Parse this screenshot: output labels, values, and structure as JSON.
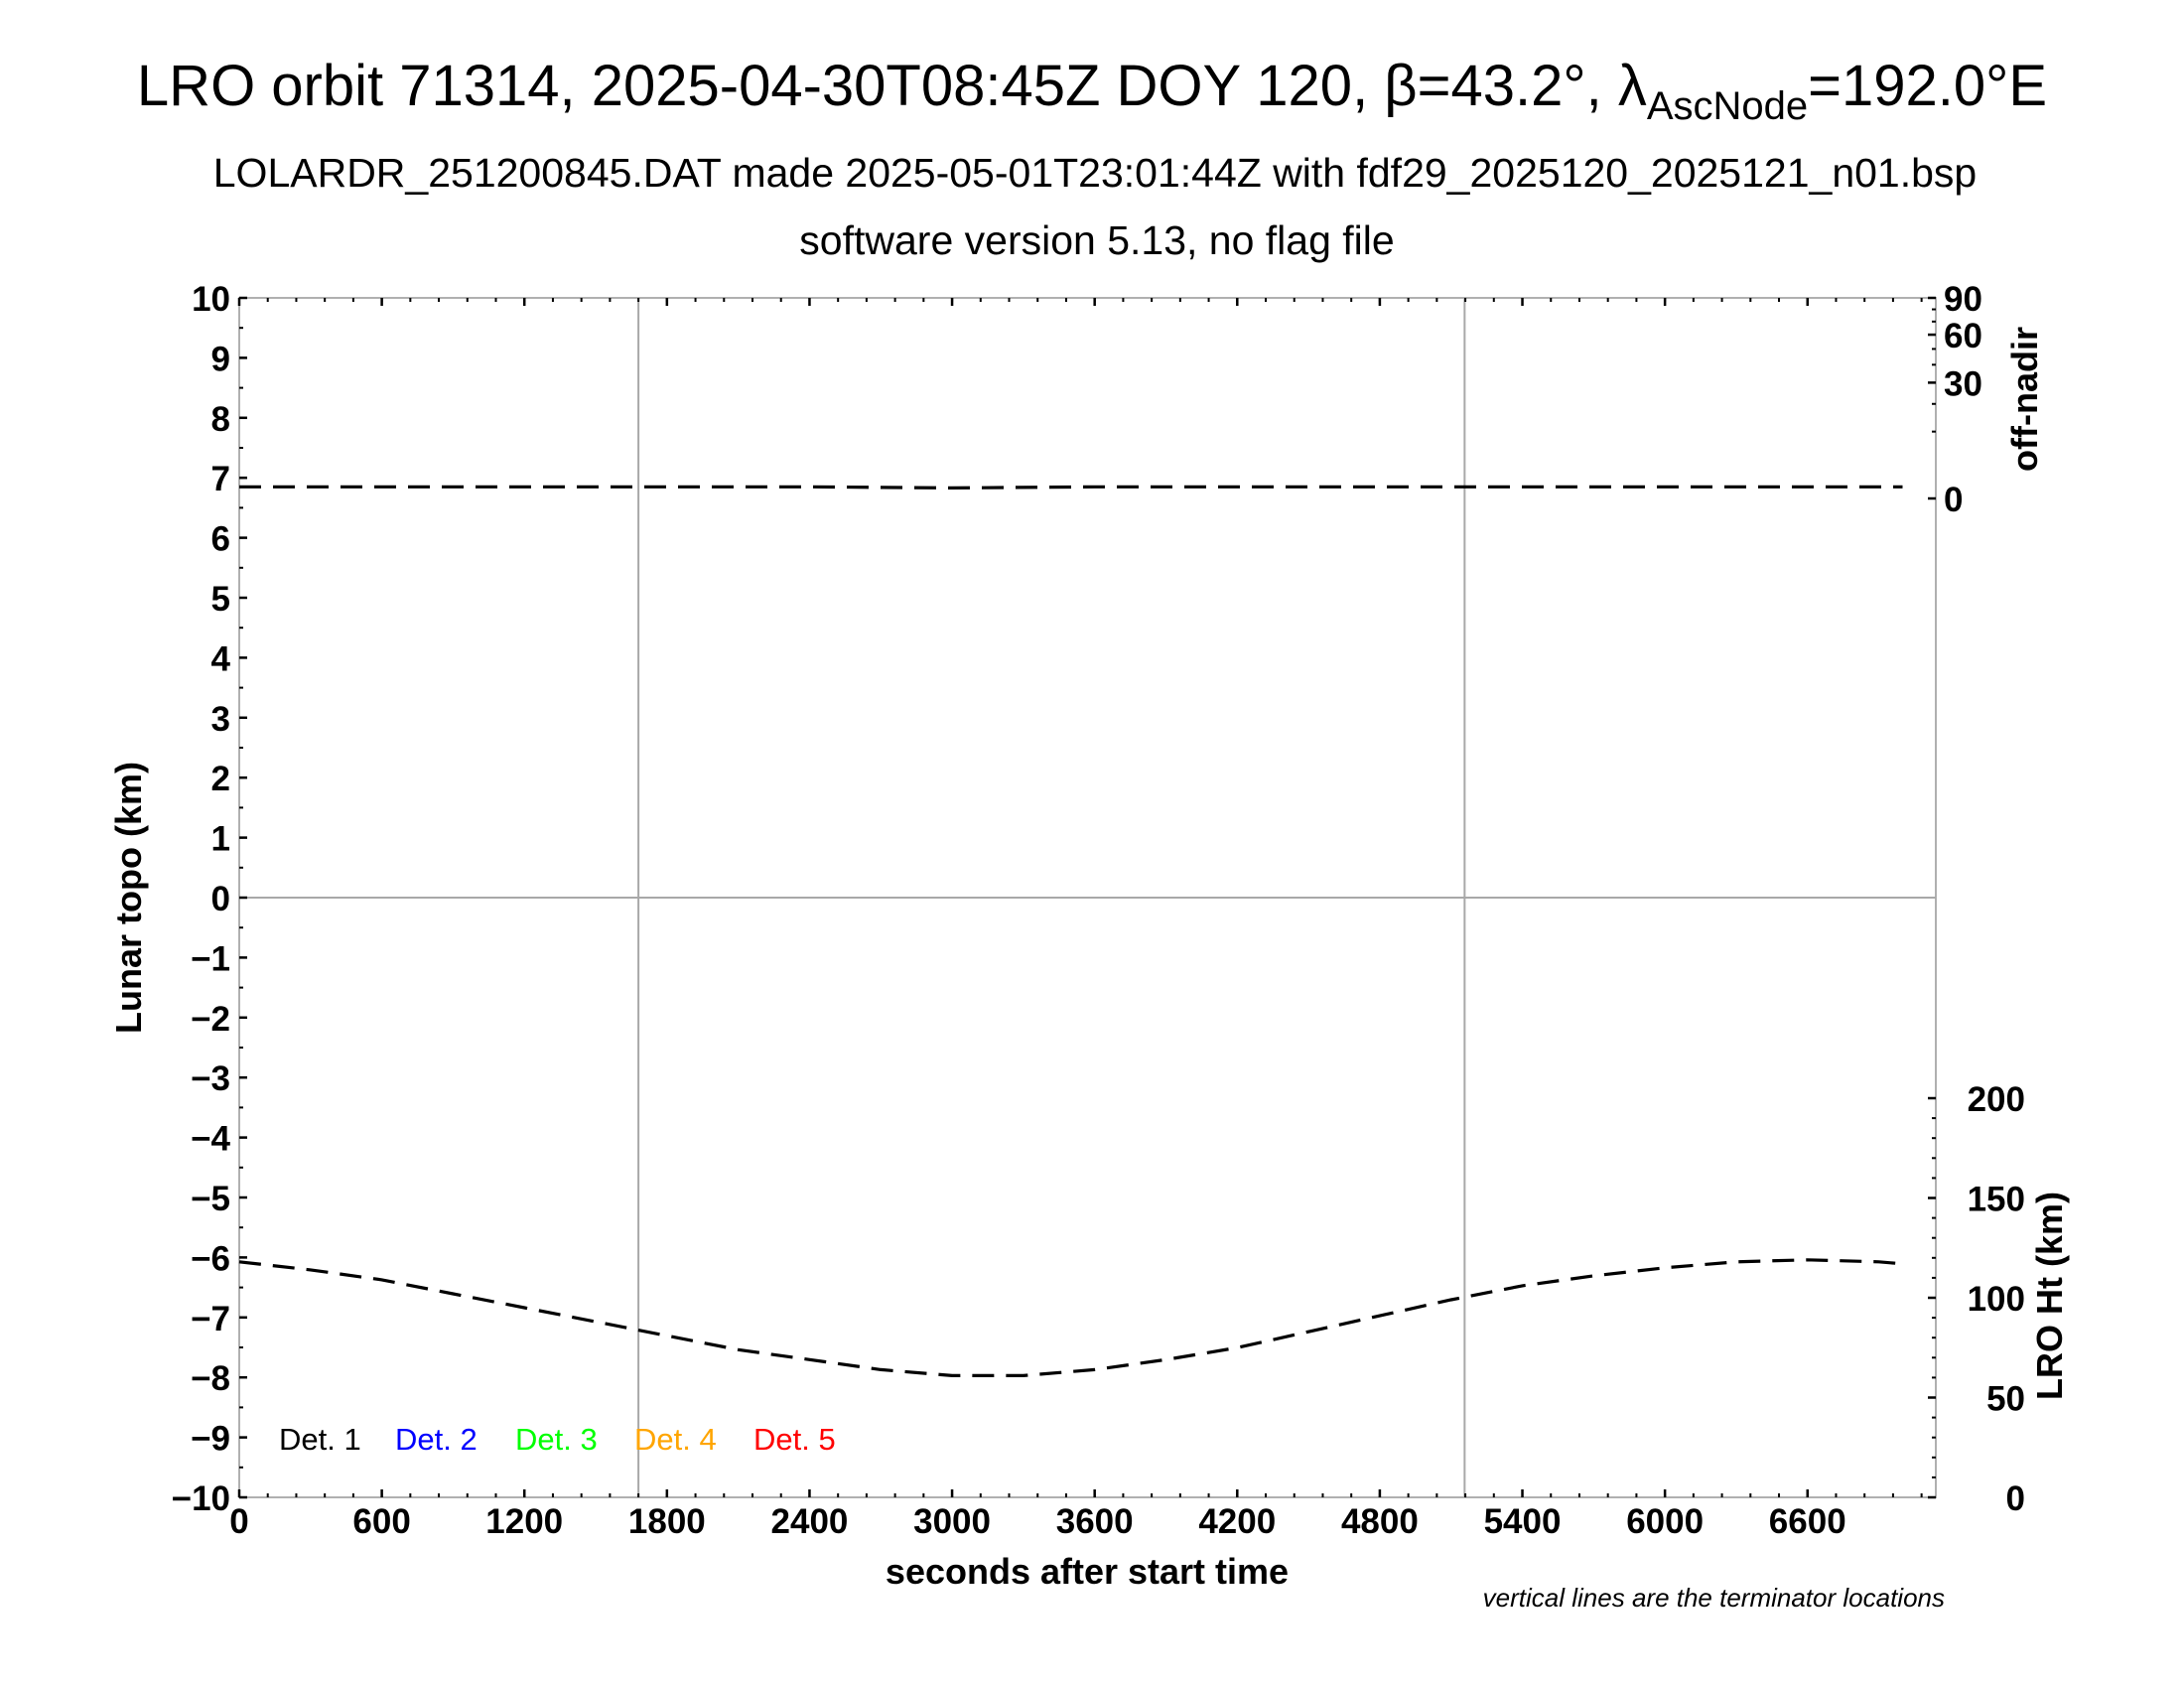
{
  "header": {
    "title_main": "LRO orbit 71314, 2025-04-30T08:45Z DOY 120, β=43.2°, λ",
    "title_sub": "AscNode",
    "title_end": "=192.0°E",
    "subtitle": "LOLARDR_251200845.DAT made 2025-05-01T23:01:44Z with fdf29_2025120_2025121_n01.bsp",
    "subtitle2": "software version 5.13, no flag file"
  },
  "chart_data": {
    "type": "line",
    "xlabel": "seconds after start time",
    "ylabel": "Lunar topo (km)",
    "y2label_top": "off-nadir",
    "y2label_bottom": "LRO Ht (km)",
    "note": "vertical lines are the terminator locations",
    "xlim": [
      0,
      7140
    ],
    "ylim": [
      -10,
      10
    ],
    "x_ticks": [
      "0",
      "600",
      "1200",
      "1800",
      "2400",
      "3000",
      "3600",
      "4200",
      "4800",
      "5400",
      "6000",
      "6600"
    ],
    "y_ticks": [
      "10",
      "9",
      "8",
      "7",
      "6",
      "5",
      "4",
      "3",
      "2",
      "1",
      "0",
      "−1",
      "−2",
      "−3",
      "−4",
      "−5",
      "−6",
      "−7",
      "−8",
      "−9",
      "−10"
    ],
    "offnadir_ticks": [
      "90",
      "60",
      "30",
      "0"
    ],
    "offnadir_scale": "sqrt",
    "lro_ht_ticks": [
      "200",
      "150",
      "100",
      "50",
      "0"
    ],
    "grid": {
      "horizontal_zero": true,
      "terminator_lines_seconds": [
        1680,
        5157
      ]
    },
    "legend": {
      "placement": "bottom-left",
      "items": [
        {
          "label": "Det. 1",
          "color": "#000000"
        },
        {
          "label": "Det. 2",
          "color": "#0000ff"
        },
        {
          "label": "Det. 3",
          "color": "#00ff00"
        },
        {
          "label": "Det. 4",
          "color": "#ffa500"
        },
        {
          "label": "Det. 5",
          "color": "#ff0000"
        }
      ]
    },
    "series": [
      {
        "axis": "off-nadir (deg)",
        "style": "dashed",
        "x": [
          0,
          600,
          1200,
          1800,
          2400,
          3000,
          3600,
          4200,
          4800,
          5400,
          6000,
          6600,
          7000
        ],
        "y": [
          0.3,
          0.3,
          0.3,
          0.3,
          0.3,
          0.25,
          0.3,
          0.3,
          0.3,
          0.3,
          0.3,
          0.3,
          0.3
        ]
      },
      {
        "axis": "LRO Ht (km)",
        "style": "dashed",
        "x": [
          0,
          300,
          600,
          900,
          1200,
          1500,
          1800,
          2100,
          2400,
          2700,
          3000,
          3300,
          3600,
          3900,
          4200,
          4500,
          4800,
          5100,
          5400,
          5700,
          6000,
          6300,
          6600,
          6900,
          7000
        ],
        "y": [
          118,
          114,
          109,
          102,
          95,
          88,
          81,
          74,
          69,
          64,
          61,
          61,
          64,
          69,
          75,
          83,
          91,
          99,
          106,
          111,
          115,
          118,
          119,
          118,
          117
        ]
      }
    ]
  }
}
